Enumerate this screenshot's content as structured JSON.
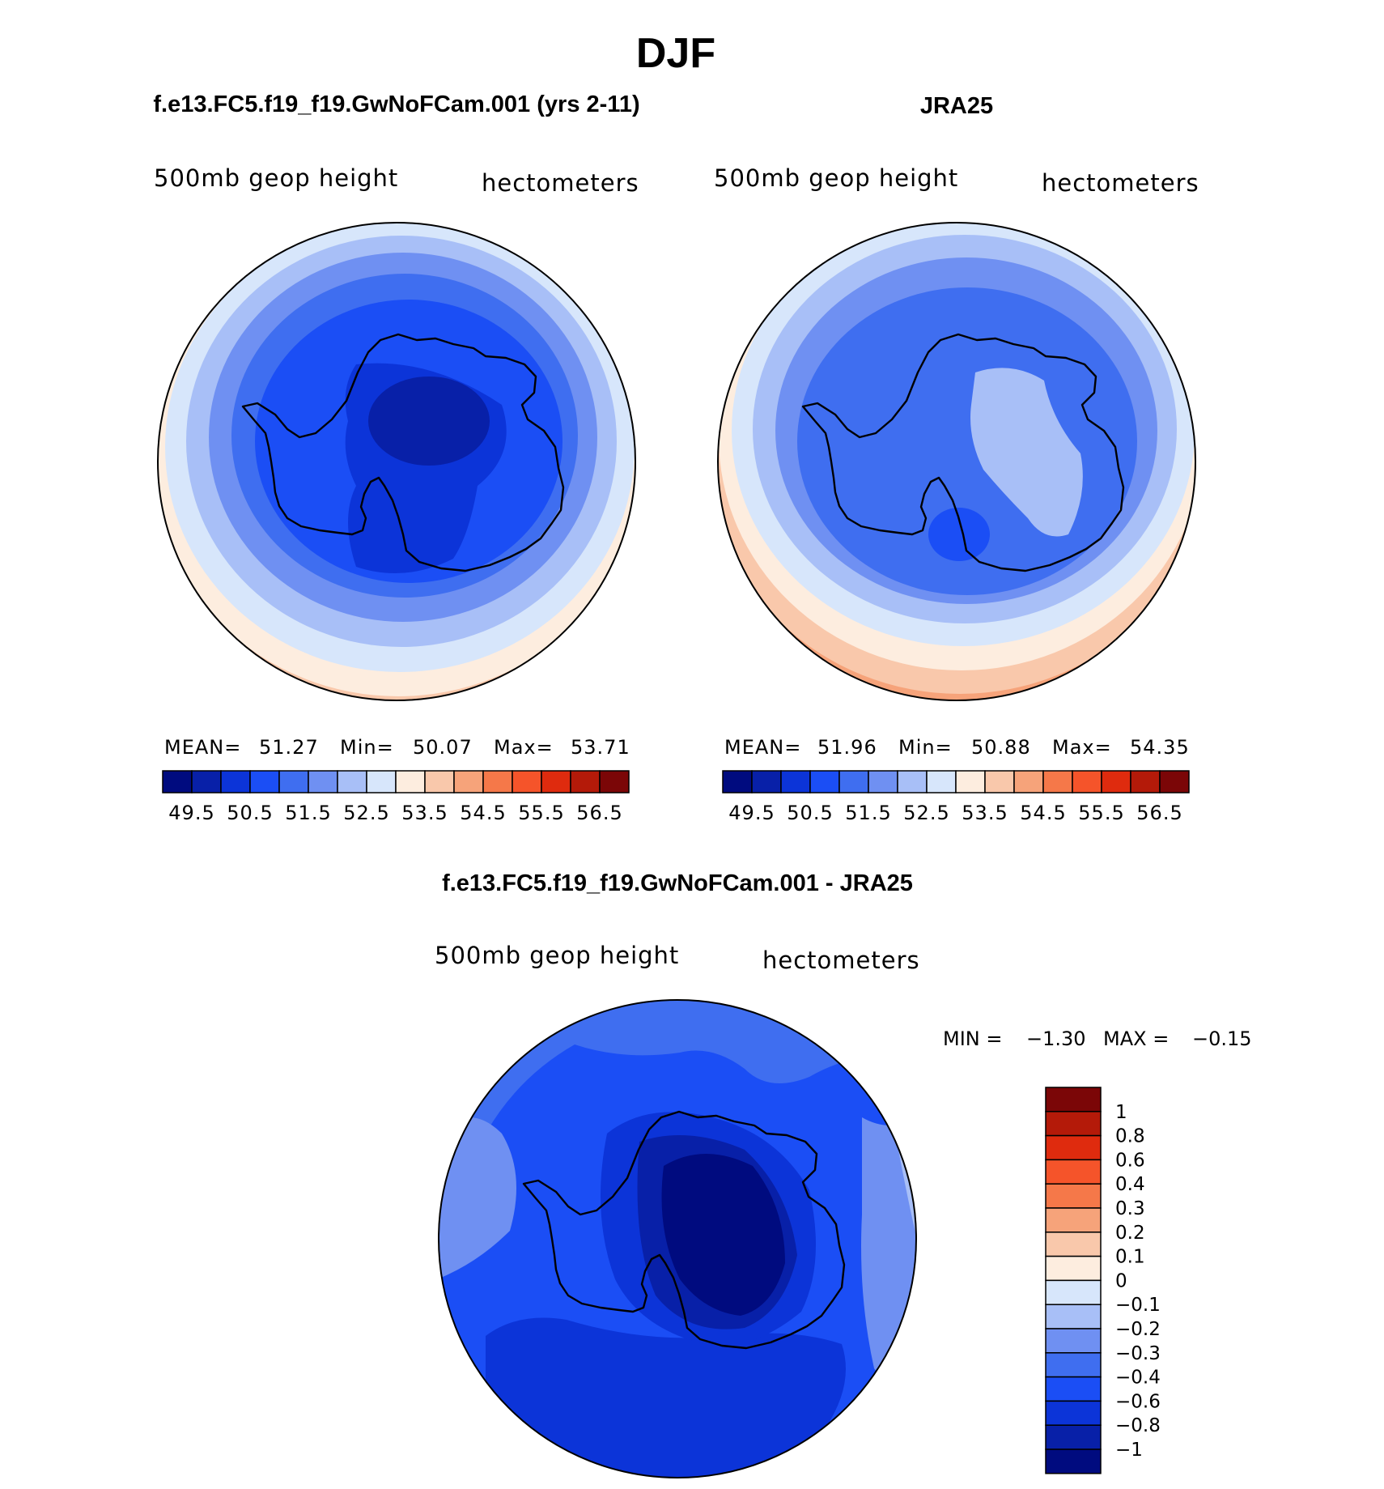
{
  "title": "DJF",
  "colors": {
    "seq": [
      "#000b7f",
      "#0820a8",
      "#0c34d8",
      "#1b4ef5",
      "#3f6ef0",
      "#6f90f2",
      "#a8bff7",
      "#d7e6fb",
      "#fdeddf",
      "#f9c8ab",
      "#f6a37a",
      "#f57849",
      "#f5542a",
      "#df2b0e",
      "#b41a09",
      "#7b0607"
    ],
    "diff": [
      "#7b0607",
      "#b41a09",
      "#df2b0e",
      "#f5542a",
      "#f57849",
      "#f6a37a",
      "#f9c8ab",
      "#fdeddf",
      "#d7e6fb",
      "#a8bff7",
      "#6f90f2",
      "#3f6ef0",
      "#1b4ef5",
      "#0c34d8",
      "#0820a8",
      "#000b7f"
    ]
  },
  "panels": [
    {
      "title": "f.e13.FC5.f19_f19.GwNoFCam.001 (yrs 2-11)",
      "variable": "500mb geop height",
      "units": "hectometers",
      "stats": {
        "mean_label": "MEAN=",
        "mean": "51.27",
        "min_label": "Min=",
        "min": "50.07",
        "max_label": "Max=",
        "max": "53.71"
      },
      "colorbar_labels": [
        "49.5",
        "50.5",
        "51.5",
        "52.5",
        "53.5",
        "54.5",
        "55.5",
        "56.5"
      ]
    },
    {
      "title": "JRA25",
      "variable": "500mb geop height",
      "units": "hectometers",
      "stats": {
        "mean_label": "MEAN=",
        "mean": "51.96",
        "min_label": "Min=",
        "min": "50.88",
        "max_label": "Max=",
        "max": "54.35"
      },
      "colorbar_labels": [
        "49.5",
        "50.5",
        "51.5",
        "52.5",
        "53.5",
        "54.5",
        "55.5",
        "56.5"
      ]
    },
    {
      "title": "f.e13.FC5.f19_f19.GwNoFCam.001 - JRA25",
      "variable": "500mb geop height",
      "units": "hectometers",
      "stats": {
        "min_label": "MIN =",
        "min": "−1.30",
        "max_label": "MAX =",
        "max": "−0.15"
      },
      "colorbar_labels": [
        "1",
        "0.8",
        "0.6",
        "0.4",
        "0.3",
        "0.2",
        "0.1",
        "0",
        "−0.1",
        "−0.2",
        "−0.3",
        "−0.4",
        "−0.6",
        "−0.8",
        "−1"
      ]
    }
  ]
}
